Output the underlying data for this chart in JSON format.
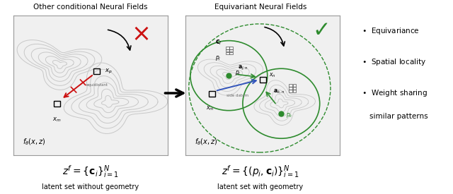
{
  "fig_width": 6.4,
  "fig_height": 2.75,
  "bg_color": "#ffffff",
  "panel_bg": "#f2f2f2",
  "contour_color": "#c8c8c8",
  "green_color": "#2e8b2e",
  "red_color": "#cc1111",
  "blue_color": "#3355bb",
  "arrow_color": "#111111",
  "left_title": "Other conditional Neural Fields",
  "right_title": "Equivariant Neural Fields",
  "left_formula": "$z^f = \\{\\mathbf{c}_i\\}_{i=1}^N$",
  "right_formula": "$z^f = \\{(p_i, \\mathbf{c}_i)\\}_{i=1}^N$",
  "left_subtitle": "latent set without geometry",
  "right_subtitle": "latent set with geometry",
  "left_func": "$f_\\theta(x, z)$",
  "right_func": "$f_\\theta(x, z)$",
  "bullet1": "Equivariance",
  "bullet2": "Spatial locality",
  "bullet3": "Weight sharing\nsimilar patterns"
}
